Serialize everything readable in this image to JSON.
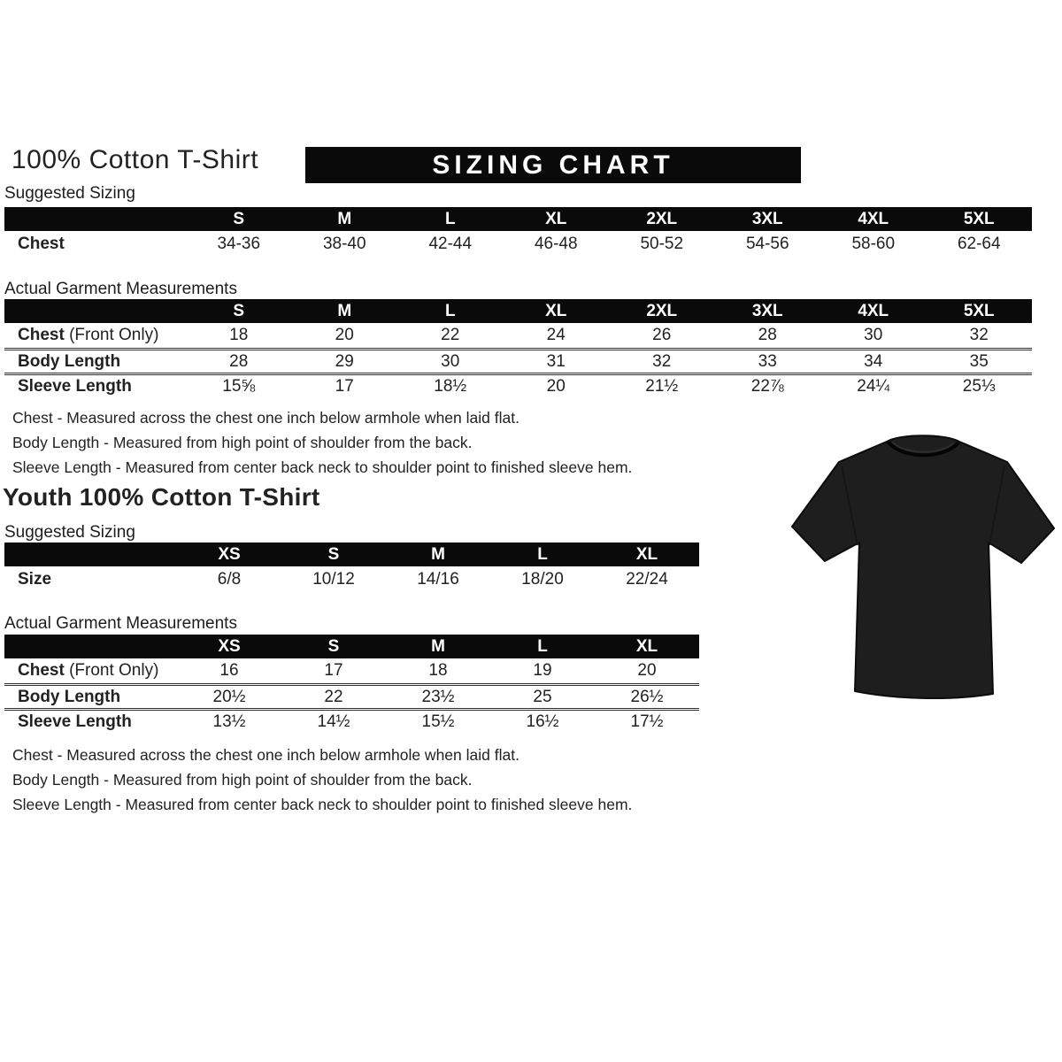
{
  "colors": {
    "banner_bg": "#0a0a0a",
    "banner_text": "#ffffff",
    "body_text": "#222222",
    "shirt_fill": "#1e1e1e"
  },
  "adult": {
    "title": "100% Cotton T-Shirt",
    "banner": "SIZING CHART",
    "suggested_label": "Suggested Sizing",
    "actual_label": "Actual Garment Measurements",
    "suggested_table": {
      "columns": [
        "S",
        "M",
        "L",
        "XL",
        "2XL",
        "3XL",
        "4XL",
        "5XL"
      ],
      "rows": [
        {
          "label": "Chest",
          "suffix": "",
          "values": [
            "34-36",
            "38-40",
            "42-44",
            "46-48",
            "50-52",
            "54-56",
            "58-60",
            "62-64"
          ]
        }
      ]
    },
    "measurements_table": {
      "columns": [
        "S",
        "M",
        "L",
        "XL",
        "2XL",
        "3XL",
        "4XL",
        "5XL"
      ],
      "rows": [
        {
          "label": "Chest",
          "suffix": "(Front Only)",
          "values": [
            "18",
            "20",
            "22",
            "24",
            "26",
            "28",
            "30",
            "32"
          ]
        },
        {
          "label": "Body Length",
          "suffix": "",
          "values": [
            "28",
            "29",
            "30",
            "31",
            "32",
            "33",
            "34",
            "35"
          ]
        },
        {
          "label": "Sleeve Length",
          "suffix": "",
          "values": [
            "15⅝",
            "17",
            "18½",
            "20",
            "21½",
            "22⅞",
            "24¼",
            "25⅓"
          ]
        }
      ]
    },
    "notes": [
      "Chest - Measured across the chest one inch below armhole when laid flat.",
      "Body Length - Measured from high point of shoulder from the back.",
      "Sleeve Length - Measured from center back neck to shoulder point to finished sleeve hem."
    ]
  },
  "youth": {
    "title": "Youth 100% Cotton T-Shirt",
    "suggested_label": "Suggested Sizing",
    "actual_label": "Actual Garment Measurements",
    "suggested_table": {
      "columns": [
        "XS",
        "S",
        "M",
        "L",
        "XL"
      ],
      "rows": [
        {
          "label": "Size",
          "suffix": "",
          "values": [
            "6/8",
            "10/12",
            "14/16",
            "18/20",
            "22/24"
          ]
        }
      ]
    },
    "measurements_table": {
      "columns": [
        "XS",
        "S",
        "M",
        "L",
        "XL"
      ],
      "rows": [
        {
          "label": "Chest",
          "suffix": "(Front Only)",
          "values": [
            "16",
            "17",
            "18",
            "19",
            "20"
          ]
        },
        {
          "label": "Body Length",
          "suffix": "",
          "values": [
            "20½",
            "22",
            "23½",
            "25",
            "26½"
          ]
        },
        {
          "label": "Sleeve Length",
          "suffix": "",
          "values": [
            "13½",
            "14½",
            "15½",
            "16½",
            "17½"
          ]
        }
      ]
    },
    "notes": [
      "Chest - Measured across the chest one inch below armhole when laid flat.",
      "Body Length - Measured from high point of shoulder from the back.",
      "Sleeve Length - Measured from center back neck to shoulder point to finished sleeve hem."
    ]
  }
}
